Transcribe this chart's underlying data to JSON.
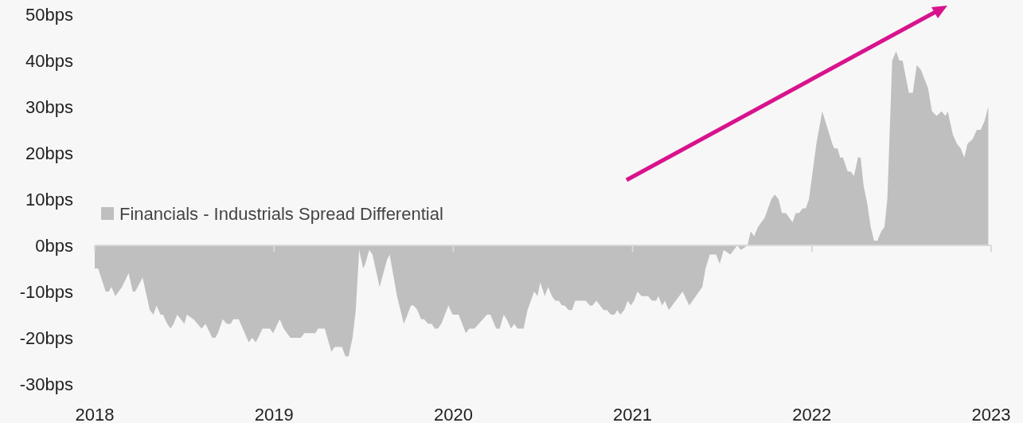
{
  "chart_data": {
    "type": "area",
    "xlim": [
      2018,
      2023
    ],
    "ylim": [
      -30,
      50
    ],
    "xticks": [
      2018,
      2019,
      2020,
      2021,
      2022,
      2023
    ],
    "yticks": [
      {
        "value": -30,
        "label": "-30bps"
      },
      {
        "value": -20,
        "label": "-20bps"
      },
      {
        "value": -10,
        "label": "-10bps"
      },
      {
        "value": 0,
        "label": "0bps"
      },
      {
        "value": 10,
        "label": "10bps"
      },
      {
        "value": 20,
        "label": "20bps"
      },
      {
        "value": 30,
        "label": "30bps"
      },
      {
        "value": 40,
        "label": "40bps"
      },
      {
        "value": 50,
        "label": "50bps"
      }
    ],
    "legend": "left",
    "series": [
      {
        "name": "Financials - Industrials Spread Differential",
        "color": "#bfbfbf",
        "x": [
          2018,
          2018.019,
          2018.061,
          2018.078,
          2018.093,
          2018.115,
          2018.152,
          2018.189,
          2018.212,
          2018.226,
          2018.267,
          2018.307,
          2018.327,
          2018.345,
          2018.367,
          2018.381,
          2018.404,
          2018.423,
          2018.44,
          2018.46,
          2018.5,
          2018.514,
          2018.551,
          2018.596,
          2018.618,
          2018.655,
          2018.673,
          2018.687,
          2018.714,
          2018.736,
          2018.758,
          2018.773,
          2018.803,
          2018.859,
          2018.877,
          2018.899,
          2018.936,
          2018.977,
          2018.995,
          2019.032,
          2019.054,
          2019.091,
          2019.15,
          2019.169,
          2019.231,
          2019.246,
          2019.283,
          2019.32,
          2019.338,
          2019.379,
          2019.398,
          2019.416,
          2019.438,
          2019.456,
          2019.475,
          2019.497,
          2019.509,
          2019.531,
          2019.549,
          2019.589,
          2019.631,
          2019.645,
          2019.686,
          2019.724,
          2019.764,
          2019.778,
          2019.8,
          2019.82,
          2019.837,
          2019.859,
          2019.879,
          2019.897,
          2019.914,
          2019.933,
          2019.973,
          2019.996,
          2020.03,
          2020.07,
          2020.089,
          2020.118,
          2020.188,
          2020.207,
          2020.239,
          2020.259,
          2020.281,
          2020.298,
          2020.322,
          2020.34,
          2020.358,
          2020.392,
          2020.414,
          2020.451,
          2020.47,
          2020.485,
          2020.51,
          2020.529,
          2020.55,
          2020.569,
          2020.588,
          2020.606,
          2020.621,
          2020.643,
          2020.662,
          2020.68,
          2020.739,
          2020.761,
          2020.776,
          2020.798,
          2020.839,
          2020.857,
          2020.879,
          2020.899,
          2020.914,
          2020.931,
          2020.953,
          2020.973,
          2020.99,
          2021.008,
          2021.027,
          2021.05,
          2021.086,
          2021.109,
          2021.131,
          2021.144,
          2021.165,
          2021.18,
          2021.202,
          2021.279,
          2021.316,
          2021.389,
          2021.407,
          2021.431,
          2021.466,
          2021.486,
          2021.508,
          2021.545,
          2021.584,
          2021.604,
          2021.641,
          2021.659,
          2021.678,
          2021.7,
          2021.737,
          2021.774,
          2021.793,
          2021.814,
          2021.833,
          2021.855,
          2021.892,
          2021.91,
          2021.929,
          2021.948,
          2021.966,
          2021.984,
          2022.025,
          2022.058,
          2022.114,
          2022.125,
          2022.143,
          2022.158,
          2022.173,
          2022.2,
          2022.217,
          2022.235,
          2022.257,
          2022.272,
          2022.288,
          2022.309,
          2022.328,
          2022.347,
          2022.365,
          2022.387,
          2022.405,
          2022.421,
          2022.448,
          2022.47,
          2022.488,
          2022.506,
          2022.541,
          2022.563,
          2022.585,
          2022.608,
          2022.648,
          2022.67,
          2022.696,
          2022.723,
          2022.745,
          2022.758,
          2022.786,
          2022.809,
          2022.83,
          2022.85,
          2022.868,
          2022.897,
          2022.92,
          2022.941,
          2022.964,
          2022.984
        ],
        "values": [
          -5,
          -5,
          -10,
          -10,
          -9,
          -11,
          -9,
          -6,
          -10,
          -10,
          -7,
          -14,
          -15,
          -13,
          -15,
          -15,
          -17,
          -18,
          -17,
          -15,
          -17,
          -15,
          -16,
          -18,
          -17,
          -20,
          -20,
          -19,
          -16,
          -17,
          -17,
          -16,
          -16,
          -21,
          -20,
          -21,
          -18,
          -18,
          -19,
          -16,
          -18,
          -20,
          -20,
          -19,
          -19,
          -18,
          -18,
          -23,
          -22,
          -22,
          -24,
          -24,
          -20,
          -14,
          -1,
          -5,
          -4,
          -1,
          -2,
          -9,
          -3,
          -2,
          -11,
          -17,
          -13,
          -13,
          -14,
          -16,
          -16,
          -17,
          -17,
          -18,
          -18,
          -17,
          -13,
          -15,
          -15,
          -19,
          -18,
          -18,
          -15,
          -15,
          -18,
          -18,
          -15,
          -16,
          -18,
          -17,
          -18,
          -18,
          -14,
          -10,
          -11,
          -8,
          -11,
          -9,
          -11,
          -12,
          -12,
          -13,
          -13,
          -14,
          -14,
          -12,
          -12,
          -13,
          -13,
          -12,
          -14,
          -14,
          -15,
          -15,
          -14,
          -15,
          -14,
          -12,
          -13,
          -12,
          -10,
          -11,
          -11,
          -12,
          -12,
          -11,
          -13,
          -12,
          -14,
          -10,
          -13,
          -9,
          -5,
          -2,
          -2,
          -4,
          -1,
          -2,
          0,
          -1,
          0,
          3,
          2,
          4,
          6,
          10,
          11,
          10,
          7,
          7,
          5,
          7,
          7,
          8,
          8,
          10,
          22,
          29,
          22,
          21,
          21,
          19,
          19,
          16,
          16,
          15,
          19,
          19,
          13,
          9,
          4,
          1,
          1,
          3,
          4,
          10,
          40,
          42,
          40,
          40,
          33,
          33,
          39,
          38,
          34,
          29,
          28,
          29,
          28,
          29,
          24,
          22,
          21,
          19,
          22,
          23,
          25,
          25,
          27,
          30
        ]
      }
    ]
  }
}
